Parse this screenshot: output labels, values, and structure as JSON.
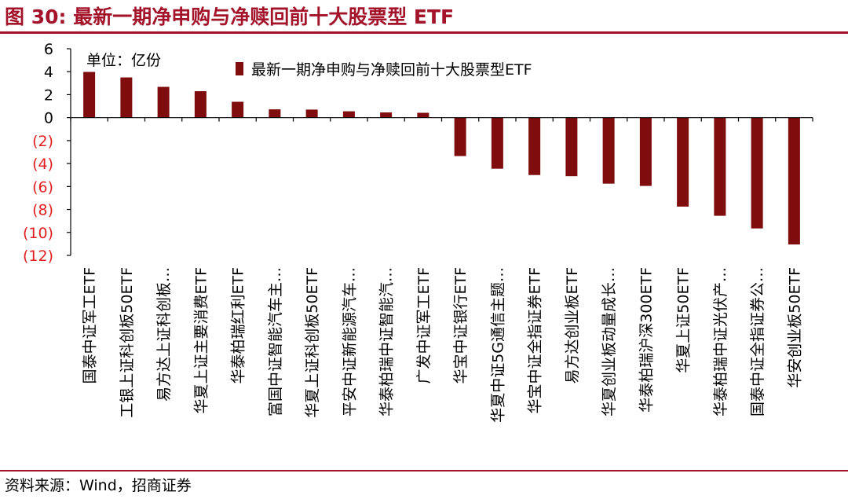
{
  "figure": {
    "title": "图 30:  最新一期净申购与净赎回前十大股票型 ETF",
    "source": "资料来源：Wind，招商证券"
  },
  "colors": {
    "bar": "#7f0d0d",
    "negative_tick": "#e02020",
    "accent": "#a3142a"
  },
  "chart_data": {
    "type": "bar",
    "title": "",
    "unit_label": "单位：亿份",
    "legend": "最新一期净申购与净赎回前十大股票型ETF",
    "legend_position": "top",
    "ylim": [
      -12,
      6
    ],
    "yticks": [
      6,
      4,
      2,
      0,
      -2,
      -4,
      -6,
      -8,
      -10,
      -12
    ],
    "ytick_labels": [
      "6",
      "4",
      "2",
      "0",
      "(2)",
      "(4)",
      "(6)",
      "(8)",
      "(10)",
      "(12)"
    ],
    "categories": [
      "国泰中证军工ETF",
      "工银上证科创板50ETF",
      "易方达上证科创板…",
      "华夏上证主要消费ETF",
      "华泰柏瑞红利ETF",
      "富国中证智能汽车主…",
      "华夏上证科创板50ETF",
      "平安中证新能源汽车…",
      "华泰柏瑞中证智能汽…",
      "广发中证军工ETF",
      "华宝中证银行ETF",
      "华夏中证5G通信主题…",
      "华宝中证全指证券ETF",
      "易方达创业板ETF",
      "华夏创业板动量成长…",
      "华泰柏瑞沪深300ETF",
      "华夏上证50ETF",
      "华泰柏瑞中证光伏产…",
      "国泰中证全指证券公…",
      "华安创业板50ETF"
    ],
    "values": [
      3.98,
      3.5,
      2.68,
      2.3,
      1.38,
      0.72,
      0.7,
      0.55,
      0.45,
      0.42,
      -3.35,
      -4.45,
      -5.0,
      -5.1,
      -5.75,
      -5.95,
      -7.75,
      -8.55,
      -9.65,
      -11.05
    ]
  }
}
